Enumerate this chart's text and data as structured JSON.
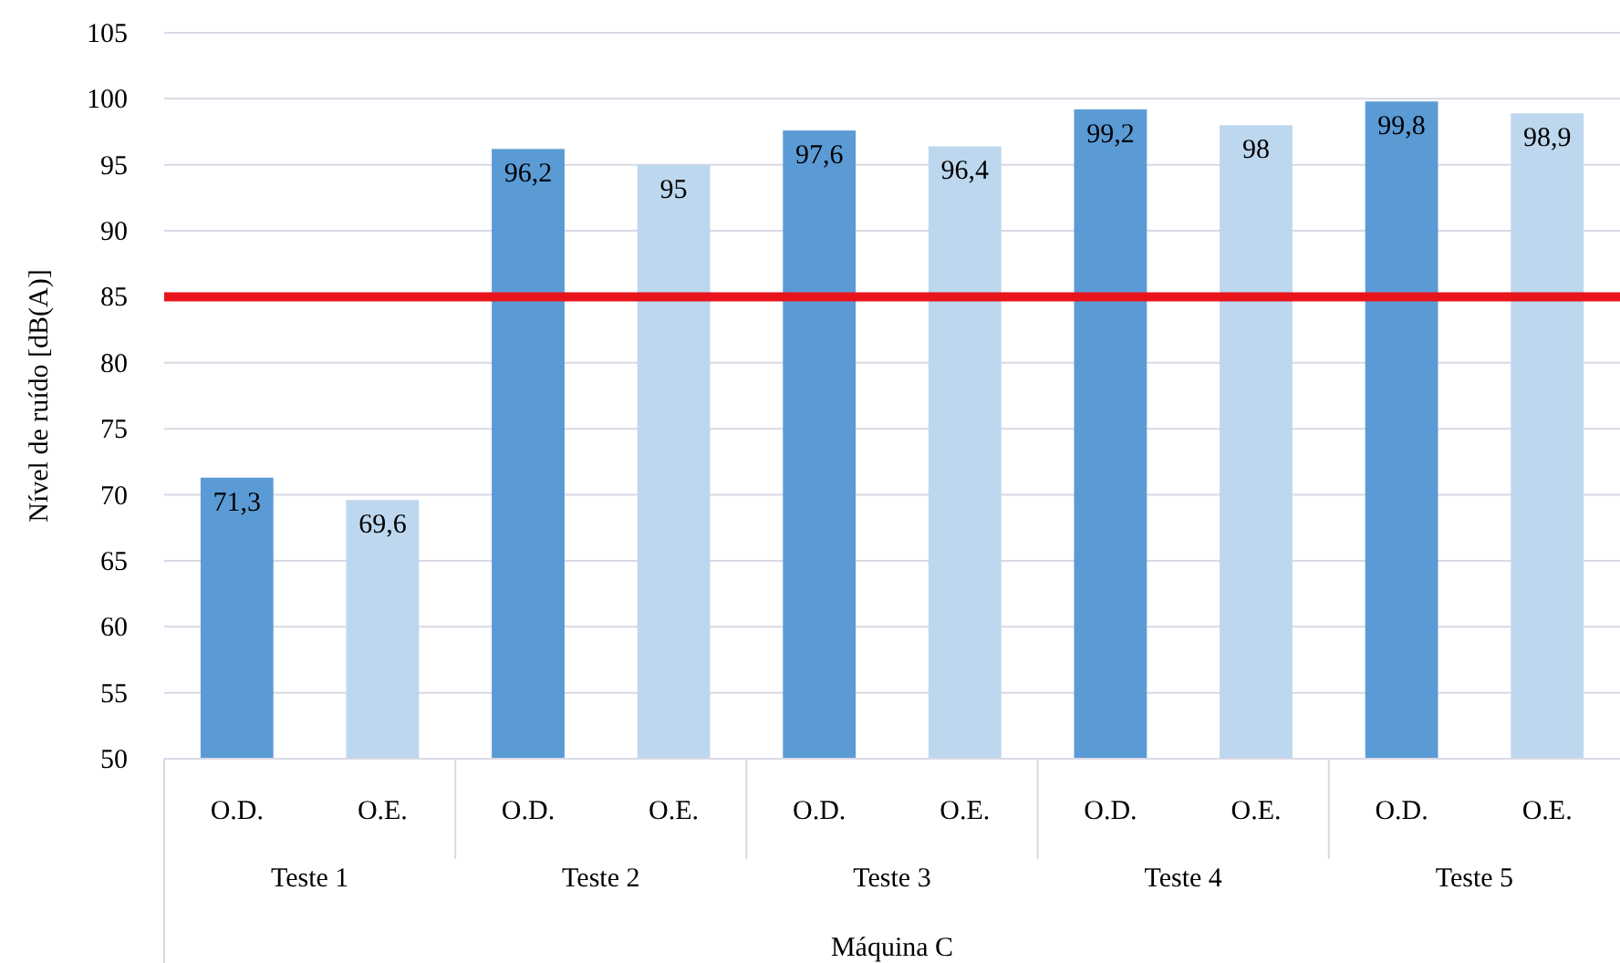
{
  "chart_data": {
    "type": "bar",
    "ylabel": "Nível de ruído [dB(A)]",
    "xlabel": "Máquina C",
    "categories": [
      "Teste 1",
      "Teste 2",
      "Teste 3",
      "Teste 4",
      "Teste 5"
    ],
    "series": [
      {
        "name": "O.D.",
        "color": "#5b9bd5",
        "values": [
          71.3,
          96.2,
          97.6,
          99.2,
          99.8
        ],
        "value_labels": [
          "71,3",
          "96,2",
          "97,6",
          "99,2",
          "99,8"
        ]
      },
      {
        "name": "O.E.",
        "color": "#bdd7ee",
        "values": [
          69.6,
          95,
          96.4,
          98,
          98.9
        ],
        "value_labels": [
          "69,6",
          "95",
          "96,4",
          "98",
          "98,9"
        ]
      }
    ],
    "ylim": [
      50,
      105
    ],
    "yticks": [
      50,
      55,
      60,
      65,
      70,
      75,
      80,
      85,
      90,
      95,
      100,
      105
    ],
    "grid": "y",
    "ref_lines": [
      {
        "axis": "y",
        "value": 85,
        "color": "#e8141c"
      }
    ]
  }
}
